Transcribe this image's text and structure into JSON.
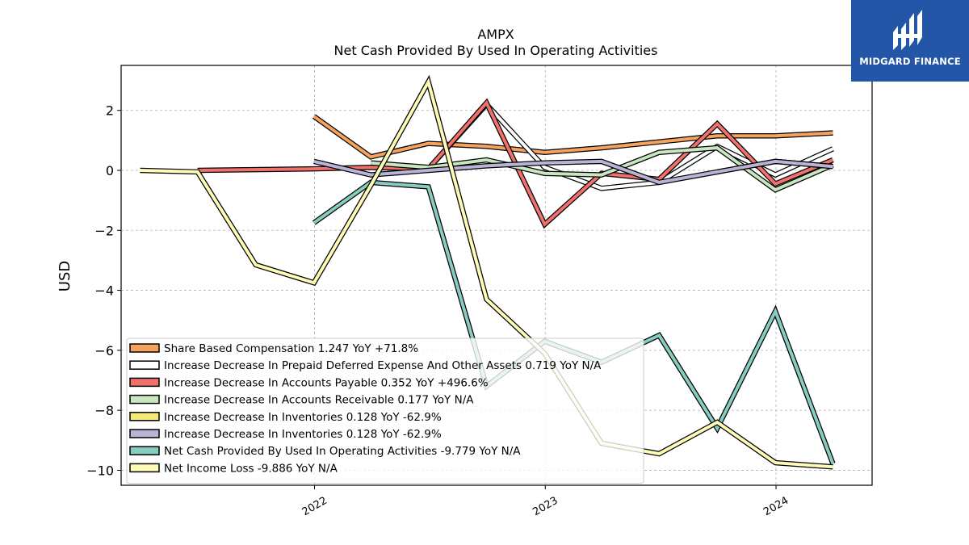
{
  "brand": {
    "name": "MIDGARD FINANCE",
    "bg_color": "#2456a8"
  },
  "chart_data": {
    "type": "line",
    "title": "AMPX",
    "subtitle": "Net Cash Provided By Used In Operating Activities",
    "ylabel": "USD",
    "xlabel": "",
    "xlim": [
      "2021-03-01",
      "2024-06-01"
    ],
    "ylim": [
      -10.5,
      3.5
    ],
    "yticks": [
      2,
      0,
      -2,
      -4,
      -6,
      -8,
      -10
    ],
    "ytick_labels": [
      "2",
      "0",
      "−2",
      "−4",
      "−6",
      "−8",
      "−10"
    ],
    "xticks": [
      "2022-01-01",
      "2023-01-01",
      "2024-01-01"
    ],
    "xtick_labels": [
      "2022",
      "2023",
      "2024"
    ],
    "grid": true,
    "legend_position": "lower-left",
    "series": [
      {
        "name": "Share Based Compensation  1.247 YoY +71.8%",
        "color": "#f5a35c",
        "x": [
          "2021-12-31",
          "2022-03-31",
          "2022-06-30",
          "2022-09-30",
          "2022-12-31",
          "2023-03-31",
          "2023-06-30",
          "2023-09-30",
          "2023-12-31",
          "2024-03-31"
        ],
        "y": [
          1.8,
          0.45,
          0.9,
          0.8,
          0.6,
          0.75,
          0.95,
          1.15,
          1.15,
          1.25
        ]
      },
      {
        "name": "Increase Decrease In Prepaid Deferred Expense And Other Assets  0.719 YoY N/A",
        "color": "#ffffff",
        "x": [
          "2022-03-31",
          "2022-06-30",
          "2022-09-30",
          "2022-12-31",
          "2023-03-31",
          "2023-06-30",
          "2023-09-30",
          "2023-12-31",
          "2024-03-31"
        ],
        "y": [
          0.15,
          0.05,
          2.2,
          0.1,
          -0.6,
          -0.4,
          0.8,
          -0.15,
          0.72
        ]
      },
      {
        "name": "Increase Decrease In Accounts Payable  0.352 YoY +496.6%",
        "color": "#f0716b",
        "x": [
          "2021-06-30",
          "2021-12-31",
          "2022-03-31",
          "2022-06-30",
          "2022-09-30",
          "2022-12-31",
          "2023-03-31",
          "2023-06-30",
          "2023-09-30",
          "2023-12-31",
          "2024-03-31"
        ],
        "y": [
          0.0,
          0.05,
          0.1,
          0.05,
          2.25,
          -1.8,
          -0.1,
          -0.3,
          1.55,
          -0.45,
          0.35
        ]
      },
      {
        "name": "Increase Decrease In Accounts Receivable  0.177 YoY N/A",
        "color": "#c8e6c0",
        "x": [
          "2022-03-31",
          "2022-06-30",
          "2022-09-30",
          "2022-12-31",
          "2023-03-31",
          "2023-06-30",
          "2023-09-30",
          "2023-12-31",
          "2024-03-31"
        ],
        "y": [
          0.25,
          0.1,
          0.35,
          -0.1,
          -0.15,
          0.6,
          0.75,
          -0.65,
          0.18
        ]
      },
      {
        "name": "Increase Decrease In Inventories  0.128 YoY -62.9%",
        "color": "#f5e97a",
        "x": [
          "2023-09-30",
          "2023-12-31",
          "2024-03-31"
        ],
        "y": [
          -0.05,
          0.3,
          0.13
        ]
      },
      {
        "name": "Increase Decrease In Inventories  0.128 YoY -62.9%",
        "color": "#b9b3d6",
        "x": [
          "2021-12-31",
          "2022-03-31",
          "2022-06-30",
          "2022-09-30",
          "2022-12-31",
          "2023-03-31",
          "2023-06-30",
          "2023-09-30",
          "2023-12-31",
          "2024-03-31"
        ],
        "y": [
          0.3,
          -0.15,
          0.0,
          0.15,
          0.25,
          0.3,
          -0.4,
          -0.05,
          0.3,
          0.13
        ]
      },
      {
        "name": "Net Cash Provided By Used In Operating Activities  -9.779 YoY N/A",
        "color": "#86cdc0",
        "x": [
          "2021-12-31",
          "2022-03-31",
          "2022-06-30",
          "2022-09-30",
          "2022-12-31",
          "2023-03-31",
          "2023-06-30",
          "2023-09-30",
          "2023-12-31",
          "2024-03-31"
        ],
        "y": [
          -1.75,
          -0.4,
          -0.55,
          -7.2,
          -5.7,
          -6.4,
          -5.5,
          -8.6,
          -4.7,
          -9.78
        ]
      },
      {
        "name": "Net Income Loss  -9.886 YoY N/A",
        "color": "#fdfbb6",
        "x": [
          "2021-03-31",
          "2021-06-30",
          "2021-09-30",
          "2021-12-31",
          "2022-03-31",
          "2022-06-30",
          "2022-09-30",
          "2022-12-31",
          "2023-03-31",
          "2023-06-30",
          "2023-09-30",
          "2023-12-31",
          "2024-03-31"
        ],
        "y": [
          0.0,
          -0.05,
          -3.15,
          -3.75,
          -0.5,
          2.95,
          -4.3,
          -6.1,
          -9.1,
          -9.45,
          -8.4,
          -9.75,
          -9.89
        ]
      }
    ]
  }
}
